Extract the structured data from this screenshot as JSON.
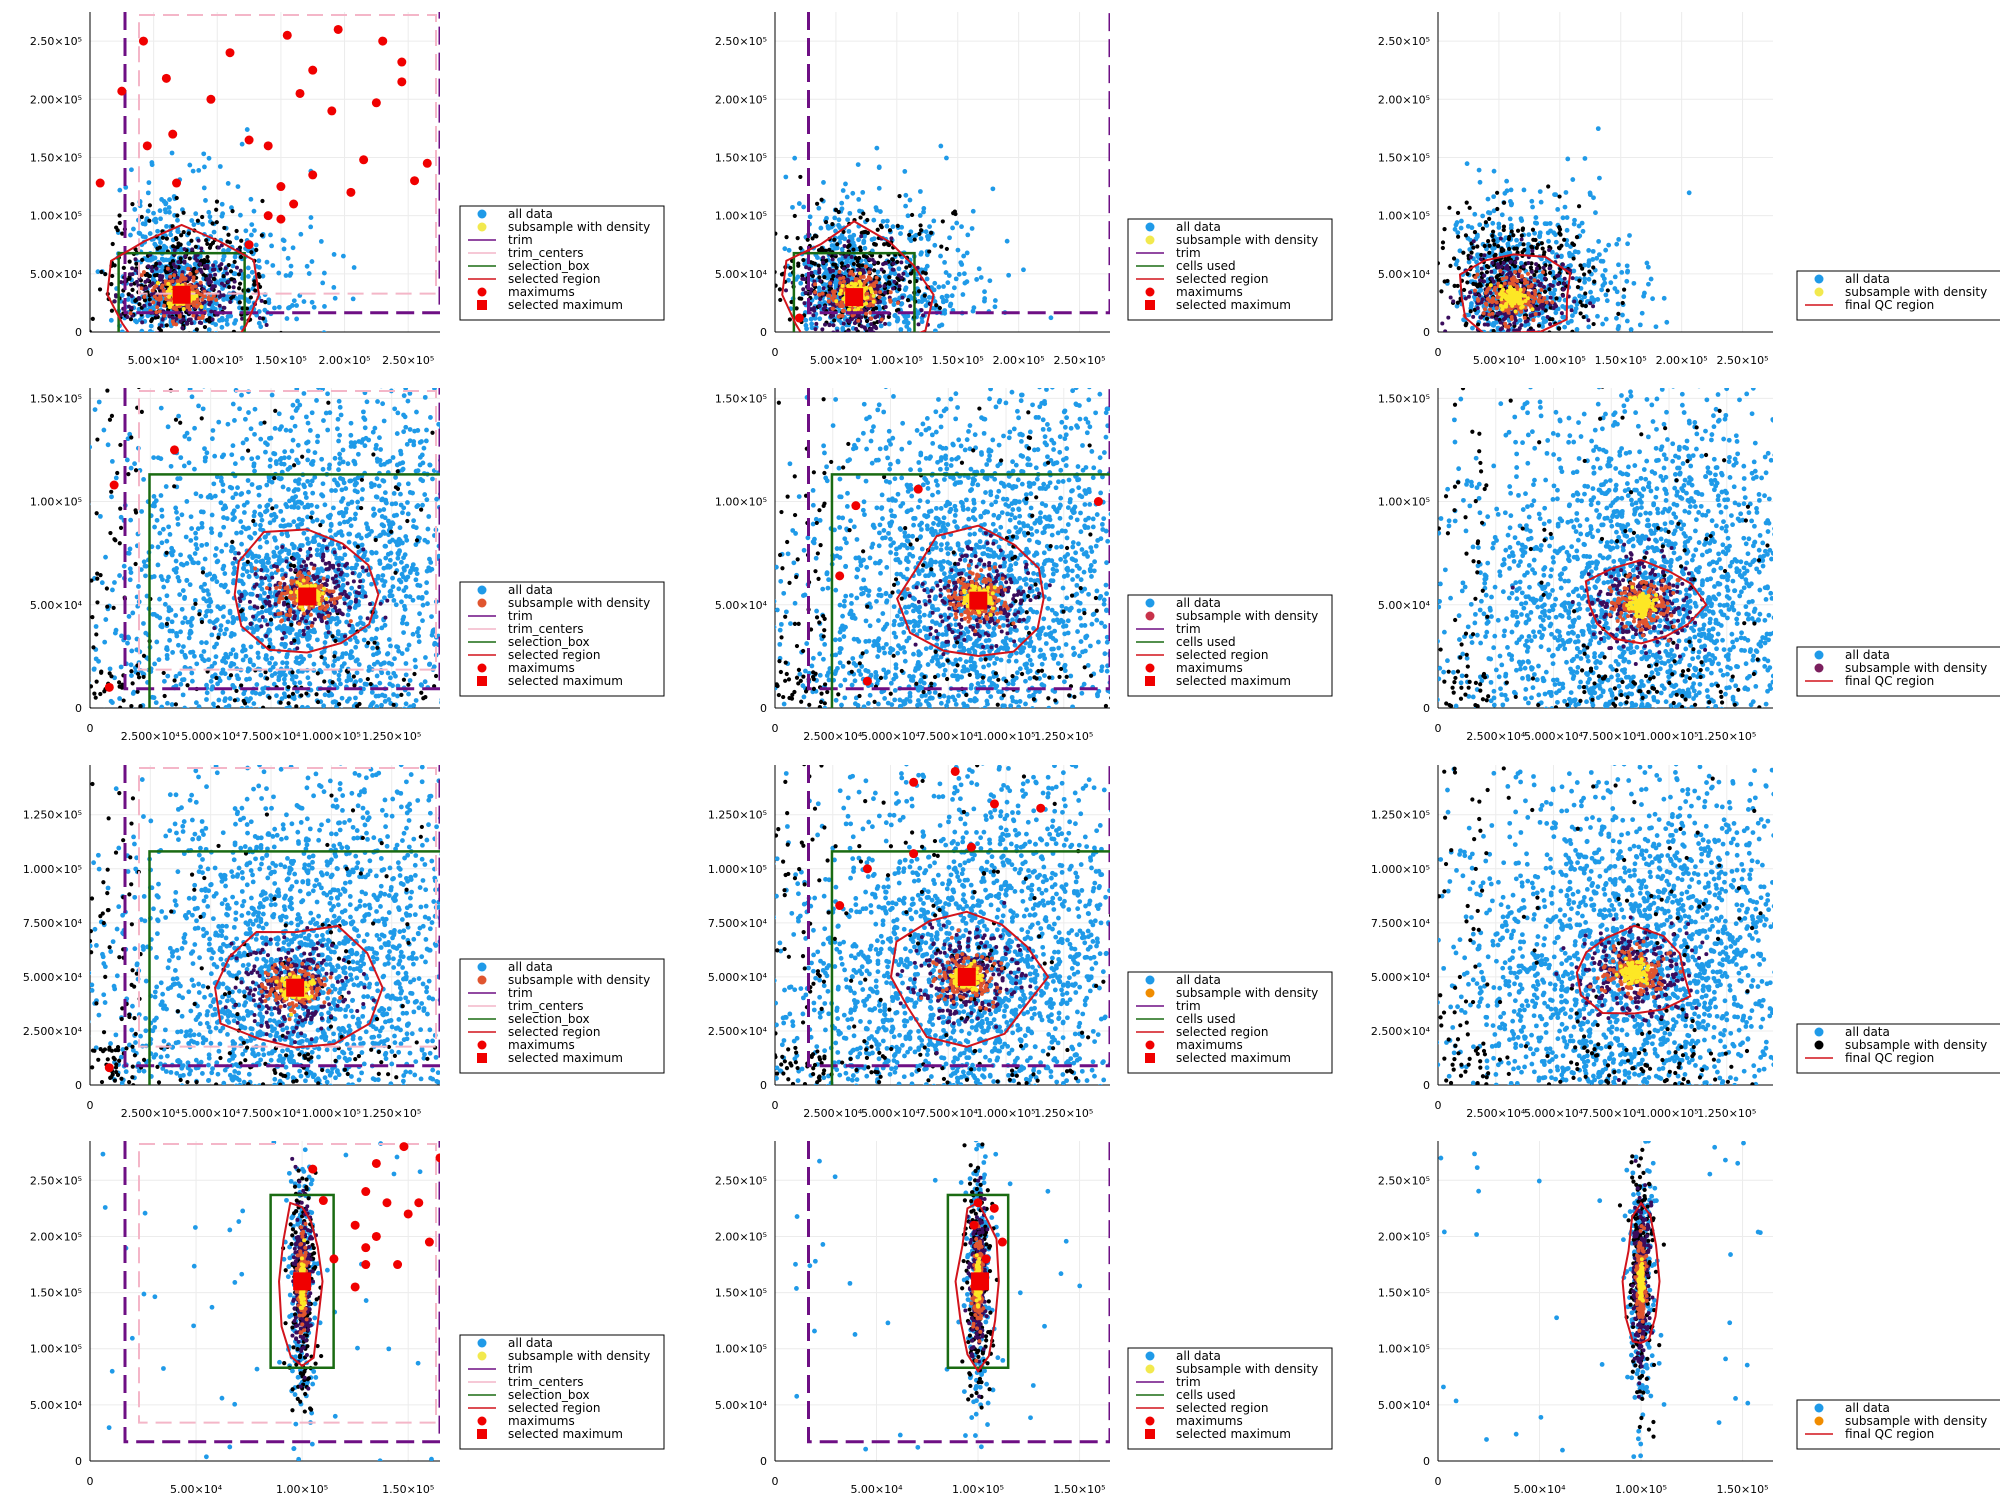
{
  "colors": {
    "all_data": "#1f9ae8",
    "subsample_dark": "#000000",
    "trim": "#6e0f84",
    "trim_centers": "#f4b6c8",
    "selection_box": "#1a6b12",
    "selected_region": "#d2141c",
    "maximums": "#f00000",
    "density_high": "#fde725",
    "density_mid": "#e0552f",
    "density_low": "#3a0c5c",
    "grid": "#ececec"
  },
  "legends": {
    "step1": [
      "all data",
      "subsample with density",
      "trim",
      "trim_centers",
      "selection_box",
      "selected region",
      "maximums",
      "selected maximum"
    ],
    "step2": [
      "all data",
      "subsample with density",
      "trim",
      "cells used",
      "selected region",
      "maximums",
      "selected maximum"
    ],
    "step3": [
      "all data",
      "subsample with density",
      "final QC region"
    ]
  },
  "chart_data": [
    {
      "id": "r1c1",
      "type": "scatter",
      "row": 1,
      "col": 1,
      "xlim": [
        0,
        275000
      ],
      "ylim": [
        0,
        275000
      ],
      "xticks": [
        "0",
        "5.00×10⁴",
        "1.00×10⁵",
        "1.50×10⁵",
        "2.00×10⁵",
        "2.50×10⁵"
      ],
      "yticks": [
        "0",
        "5.00×10⁴",
        "1.00×10⁵",
        "1.50×10⁵",
        "2.00×10⁵",
        "2.50×10⁵"
      ],
      "legend": "step1",
      "legend_placement": "right",
      "subsample_marker_color": "#f2e94e",
      "density_center": [
        72000,
        32000
      ],
      "selected_maximum": [
        72000,
        32000
      ],
      "maximums": [
        [
          8000,
          128000
        ],
        [
          25000,
          207000
        ],
        [
          42000,
          250000
        ],
        [
          60000,
          218000
        ],
        [
          45000,
          160000
        ],
        [
          65000,
          170000
        ],
        [
          68000,
          128000
        ],
        [
          95000,
          200000
        ],
        [
          110000,
          240000
        ],
        [
          125000,
          165000
        ],
        [
          140000,
          160000
        ],
        [
          150000,
          125000
        ],
        [
          165000,
          205000
        ],
        [
          175000,
          225000
        ],
        [
          195000,
          260000
        ],
        [
          230000,
          250000
        ],
        [
          245000,
          232000
        ],
        [
          225000,
          197000
        ],
        [
          215000,
          148000
        ],
        [
          190000,
          190000
        ],
        [
          175000,
          135000
        ],
        [
          160000,
          110000
        ],
        [
          140000,
          100000
        ],
        [
          125000,
          75000
        ],
        [
          150000,
          97000
        ],
        [
          205000,
          120000
        ],
        [
          255000,
          130000
        ],
        [
          265000,
          145000
        ],
        [
          245000,
          215000
        ],
        [
          155000,
          255000
        ]
      ]
    },
    {
      "id": "r1c2",
      "type": "scatter",
      "row": 1,
      "col": 2,
      "xlim": [
        0,
        275000
      ],
      "ylim": [
        0,
        275000
      ],
      "xticks": [
        "0",
        "5.00×10⁴",
        "1.00×10⁵",
        "1.50×10⁵",
        "2.00×10⁵",
        "2.50×10⁵"
      ],
      "yticks": [
        "0",
        "5.00×10⁴",
        "1.00×10⁵",
        "1.50×10⁵",
        "2.00×10⁵",
        "2.50×10⁵"
      ],
      "legend": "step2",
      "legend_placement": "right",
      "subsample_marker_color": "#f2e94e",
      "density_center": [
        65000,
        32000
      ],
      "selected_maximum": [
        65000,
        30000
      ],
      "maximums": [
        [
          20000,
          12000
        ]
      ]
    },
    {
      "id": "r1c3",
      "type": "scatter",
      "row": 1,
      "col": 3,
      "xlim": [
        0,
        275000
      ],
      "ylim": [
        0,
        275000
      ],
      "xticks": [
        "0",
        "5.00×10⁴",
        "1.00×10⁵",
        "1.50×10⁵",
        "2.00×10⁵",
        "2.50×10⁵"
      ],
      "yticks": [
        "0",
        "5.00×10⁴",
        "1.00×10⁵",
        "1.50×10⁵",
        "2.00×10⁵",
        "2.50×10⁵"
      ],
      "legend": "step3",
      "legend_placement": "right",
      "subsample_marker_color": "#f2e94e",
      "density_center": [
        62000,
        30000
      ]
    },
    {
      "id": "r2c1",
      "type": "scatter",
      "row": 2,
      "col": 1,
      "xlim": [
        0,
        145000
      ],
      "ylim": [
        0,
        155000
      ],
      "xticks": [
        "0",
        "2.500×10⁴",
        "5.000×10⁴",
        "7.500×10⁴",
        "1.000×10⁵",
        "1.250×10⁵"
      ],
      "yticks": [
        "0",
        "5.00×10⁴",
        "1.00×10⁵",
        "1.50×10⁵"
      ],
      "legend": "step1",
      "legend_placement": "right",
      "subsample_marker_color": "#e0552f",
      "density_center": [
        90000,
        55000
      ],
      "selected_maximum": [
        90000,
        54000
      ],
      "maximums": [
        [
          10000,
          108000
        ],
        [
          35000,
          125000
        ],
        [
          8000,
          10000
        ]
      ]
    },
    {
      "id": "r2c2",
      "type": "scatter",
      "row": 2,
      "col": 2,
      "xlim": [
        0,
        145000
      ],
      "ylim": [
        0,
        155000
      ],
      "xticks": [
        "0",
        "2.500×10⁴",
        "5.000×10⁴",
        "7.500×10⁴",
        "1.000×10⁵",
        "1.250×10⁵"
      ],
      "yticks": [
        "0",
        "5.00×10⁴",
        "1.00×10⁵",
        "1.50×10⁵"
      ],
      "legend": "step2",
      "legend_placement": "right",
      "subsample_marker_color": "#c8324a",
      "density_center": [
        88000,
        53000
      ],
      "selected_maximum": [
        88000,
        52000
      ],
      "maximums": [
        [
          35000,
          98000
        ],
        [
          62000,
          106000
        ],
        [
          140000,
          100000
        ],
        [
          28000,
          64000
        ],
        [
          40000,
          13000
        ]
      ]
    },
    {
      "id": "r2c3",
      "type": "scatter",
      "row": 2,
      "col": 3,
      "xlim": [
        0,
        145000
      ],
      "ylim": [
        0,
        155000
      ],
      "xticks": [
        "0",
        "2.500×10⁴",
        "5.000×10⁴",
        "7.500×10⁴",
        "1.000×10⁵",
        "1.250×10⁵"
      ],
      "yticks": [
        "0",
        "5.00×10⁴",
        "1.00×10⁵",
        "1.50×10⁵"
      ],
      "legend": "step3",
      "legend_placement": "right",
      "subsample_marker_color": "#7b1f5e",
      "density_center": [
        88000,
        50000
      ]
    },
    {
      "id": "r3c1",
      "type": "scatter",
      "row": 3,
      "col": 1,
      "xlim": [
        0,
        145000
      ],
      "ylim": [
        0,
        148000
      ],
      "xticks": [
        "0",
        "2.500×10⁴",
        "5.000×10⁴",
        "7.500×10⁴",
        "1.000×10⁵",
        "1.250×10⁵"
      ],
      "yticks": [
        "0",
        "2.500×10⁴",
        "5.000×10⁴",
        "7.500×10⁴",
        "1.000×10⁵",
        "1.250×10⁵"
      ],
      "legend": "step1",
      "legend_placement": "right",
      "subsample_marker_color": "#e0552f",
      "density_center": [
        85000,
        45000
      ],
      "selected_maximum": [
        85000,
        45000
      ],
      "maximums": [
        [
          8000,
          8000
        ]
      ]
    },
    {
      "id": "r3c2",
      "type": "scatter",
      "row": 3,
      "col": 2,
      "xlim": [
        0,
        145000
      ],
      "ylim": [
        0,
        148000
      ],
      "xticks": [
        "0",
        "2.500×10⁴",
        "5.000×10⁴",
        "7.500×10⁴",
        "1.000×10⁵",
        "1.250×10⁵"
      ],
      "yticks": [
        "0",
        "2.500×10⁴",
        "5.000×10⁴",
        "7.500×10⁴",
        "1.000×10⁵",
        "1.250×10⁵"
      ],
      "legend": "step2",
      "legend_placement": "right",
      "subsample_marker_color": "#f08c00",
      "density_center": [
        83000,
        50000
      ],
      "selected_maximum": [
        83000,
        50000
      ],
      "maximums": [
        [
          60000,
          140000
        ],
        [
          78000,
          145000
        ],
        [
          95000,
          130000
        ],
        [
          115000,
          128000
        ],
        [
          60000,
          107000
        ],
        [
          40000,
          100000
        ],
        [
          85000,
          110000
        ],
        [
          28000,
          83000
        ]
      ]
    },
    {
      "id": "r3c3",
      "type": "scatter",
      "row": 3,
      "col": 3,
      "xlim": [
        0,
        145000
      ],
      "ylim": [
        0,
        148000
      ],
      "xticks": [
        "0",
        "2.500×10⁴",
        "5.000×10⁴",
        "7.500×10⁴",
        "1.000×10⁵",
        "1.250×10⁵"
      ],
      "yticks": [
        "0",
        "2.500×10⁴",
        "5.000×10⁴",
        "7.500×10⁴",
        "1.000×10⁵",
        "1.250×10⁵"
      ],
      "legend": "step3",
      "legend_placement": "right",
      "subsample_marker_color": "#000000",
      "density_center": [
        85000,
        52000
      ]
    },
    {
      "id": "r4c1",
      "type": "scatter",
      "row": 4,
      "col": 1,
      "xlim": [
        0,
        165000
      ],
      "ylim": [
        0,
        285000
      ],
      "xticks": [
        "0",
        "5.00×10⁴",
        "1.00×10⁵",
        "1.50×10⁵"
      ],
      "yticks": [
        "0",
        "5.00×10⁴",
        "1.00×10⁵",
        "1.50×10⁵",
        "2.00×10⁵",
        "2.50×10⁵"
      ],
      "legend": "step1",
      "legend_placement": "right",
      "subsample_marker_color": "#f2e94e",
      "density_center": [
        100000,
        160000
      ],
      "selected_maximum": [
        100000,
        160000
      ],
      "maximums": [
        [
          105000,
          260000
        ],
        [
          110000,
          232000
        ],
        [
          130000,
          240000
        ],
        [
          140000,
          230000
        ],
        [
          125000,
          210000
        ],
        [
          135000,
          200000
        ],
        [
          115000,
          180000
        ],
        [
          130000,
          175000
        ],
        [
          150000,
          220000
        ],
        [
          160000,
          195000
        ],
        [
          145000,
          175000
        ],
        [
          155000,
          230000
        ],
        [
          135000,
          265000
        ],
        [
          148000,
          280000
        ],
        [
          165000,
          270000
        ],
        [
          130000,
          190000
        ],
        [
          125000,
          155000
        ]
      ]
    },
    {
      "id": "r4c2",
      "type": "scatter",
      "row": 4,
      "col": 2,
      "xlim": [
        0,
        165000
      ],
      "ylim": [
        0,
        285000
      ],
      "xticks": [
        "0",
        "5.00×10⁴",
        "1.00×10⁵",
        "1.50×10⁵"
      ],
      "yticks": [
        "0",
        "5.00×10⁴",
        "1.00×10⁵",
        "1.50×10⁵",
        "2.00×10⁵",
        "2.50×10⁵"
      ],
      "legend": "step2",
      "legend_placement": "right",
      "subsample_marker_color": "#f2e94e",
      "density_center": [
        100000,
        160000
      ],
      "selected_maximum": [
        101000,
        160000
      ],
      "maximums": [
        [
          100000,
          230000
        ],
        [
          108000,
          225000
        ],
        [
          98000,
          210000
        ],
        [
          112000,
          195000
        ],
        [
          104000,
          180000
        ]
      ]
    },
    {
      "id": "r4c3",
      "type": "scatter",
      "row": 4,
      "col": 3,
      "xlim": [
        0,
        165000
      ],
      "ylim": [
        0,
        285000
      ],
      "xticks": [
        "0",
        "5.00×10⁴",
        "1.00×10⁵",
        "1.50×10⁵"
      ],
      "yticks": [
        "0",
        "5.00×10⁴",
        "1.00×10⁵",
        "1.50×10⁵",
        "2.00×10⁵",
        "2.50×10⁵"
      ],
      "legend": "step3",
      "legend_placement": "right",
      "subsample_marker_color": "#f08c00",
      "density_center": [
        100000,
        160000
      ]
    }
  ]
}
